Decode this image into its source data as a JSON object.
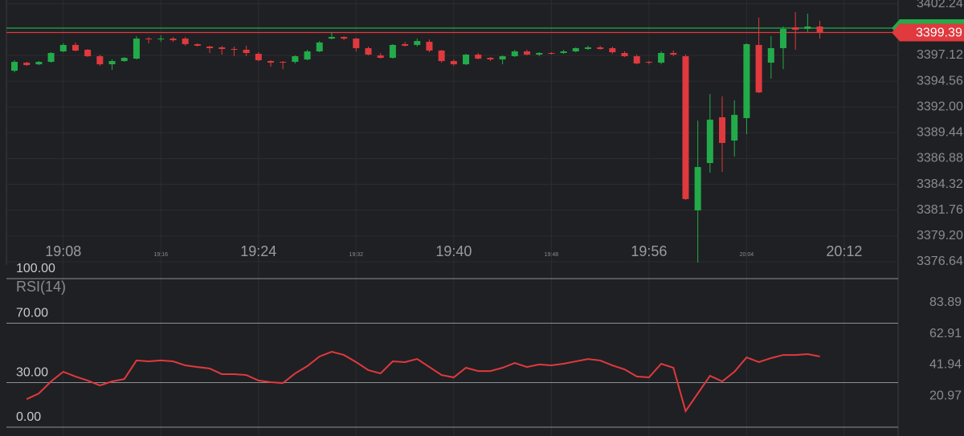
{
  "chart_data": {
    "type": "candlestick",
    "categories": [
      "19:04",
      "19:05",
      "19:06",
      "19:07",
      "19:08",
      "19:09",
      "19:10",
      "19:11",
      "19:12",
      "19:13",
      "19:14",
      "19:15",
      "19:16",
      "19:17",
      "19:18",
      "19:19",
      "19:20",
      "19:21",
      "19:22",
      "19:23",
      "19:24",
      "19:25",
      "19:26",
      "19:27",
      "19:28",
      "19:29",
      "19:30",
      "19:31",
      "19:32",
      "19:33",
      "19:34",
      "19:35",
      "19:36",
      "19:37",
      "19:38",
      "19:39",
      "19:40",
      "19:41",
      "19:42",
      "19:43",
      "19:44",
      "19:45",
      "19:46",
      "19:47",
      "19:48",
      "19:49",
      "19:50",
      "19:51",
      "19:52",
      "19:53",
      "19:54",
      "19:55",
      "19:56",
      "19:57",
      "19:58",
      "19:59",
      "20:00",
      "20:01",
      "20:02",
      "20:03",
      "20:04",
      "20:05",
      "20:06",
      "20:07",
      "20:08",
      "20:09",
      "20:10"
    ],
    "open": [
      3395.6,
      3396.4,
      3396.24,
      3396.48,
      3397.52,
      3398.16,
      3397.68,
      3397.04,
      3396.24,
      3396.56,
      3396.8,
      3398.79,
      3398.71,
      3398.79,
      3398.79,
      3398.24,
      3398.0,
      3397.92,
      3397.76,
      3397.68,
      3397.28,
      3396.56,
      3396.48,
      3396.48,
      3396.72,
      3397.52,
      3398.79,
      3398.95,
      3398.79,
      3397.84,
      3397.12,
      3396.88,
      3398.24,
      3398.16,
      3398.47,
      3397.6,
      3396.56,
      3396.24,
      3397.2,
      3396.88,
      3396.72,
      3397.04,
      3397.52,
      3397.2,
      3397.36,
      3397.36,
      3397.52,
      3397.76,
      3397.92,
      3397.84,
      3397.36,
      3397.04,
      3396.48,
      3396.4,
      3397.36,
      3397.04,
      3381.74,
      3386.44,
      3390.98,
      3388.67,
      3390.9,
      3398.16,
      3396.4,
      3397.84,
      3399.91,
      3399.75,
      3399.99
    ],
    "high": [
      3396.64,
      3396.48,
      3396.56,
      3397.44,
      3398.32,
      3398.4,
      3397.76,
      3397.2,
      3396.72,
      3396.96,
      3399.03,
      3398.95,
      3399.11,
      3398.95,
      3398.95,
      3398.32,
      3398.08,
      3398.08,
      3398.0,
      3398.08,
      3397.44,
      3396.64,
      3396.56,
      3397.12,
      3397.68,
      3398.55,
      3399.43,
      3399.03,
      3398.87,
      3398.0,
      3397.36,
      3398.24,
      3398.47,
      3398.79,
      3398.71,
      3397.68,
      3396.72,
      3397.28,
      3397.36,
      3396.96,
      3397.12,
      3397.68,
      3397.68,
      3397.44,
      3397.44,
      3397.68,
      3397.92,
      3398.08,
      3398.08,
      3398.0,
      3397.52,
      3397.2,
      3396.56,
      3397.52,
      3397.6,
      3397.2,
      3390.66,
      3393.29,
      3393.06,
      3392.66,
      3398.32,
      3400.87,
      3399.03,
      3399.99,
      3401.42,
      3401.26,
      3400.55
    ],
    "low": [
      3395.45,
      3396.08,
      3396.16,
      3396.4,
      3397.44,
      3397.52,
      3396.96,
      3396.08,
      3395.68,
      3396.48,
      3396.72,
      3398.32,
      3398.47,
      3398.47,
      3398.08,
      3398.0,
      3397.36,
      3397.2,
      3397.04,
      3397.04,
      3396.56,
      3396.0,
      3395.76,
      3396.32,
      3396.64,
      3397.44,
      3398.71,
      3398.63,
      3397.52,
      3397.12,
      3396.8,
      3396.8,
      3398.0,
      3398.0,
      3397.44,
      3396.4,
      3396.08,
      3396.16,
      3396.72,
      3396.56,
      3396.24,
      3396.96,
      3397.12,
      3397.04,
      3397.2,
      3397.28,
      3397.44,
      3397.68,
      3397.68,
      3397.28,
      3396.96,
      3396.24,
      3396.24,
      3396.24,
      3397.04,
      3382.78,
      3376.56,
      3385.48,
      3385.56,
      3387.08,
      3389.31,
      3393.37,
      3394.81,
      3395.76,
      3397.68,
      3399.43,
      3398.79
    ],
    "close": [
      3396.48,
      3396.16,
      3396.48,
      3397.36,
      3398.16,
      3397.6,
      3397.04,
      3396.24,
      3396.56,
      3396.88,
      3398.79,
      3398.71,
      3398.79,
      3398.63,
      3398.24,
      3398.08,
      3397.84,
      3397.76,
      3397.68,
      3397.36,
      3396.64,
      3396.4,
      3396.4,
      3397.04,
      3397.52,
      3398.4,
      3398.95,
      3398.79,
      3397.84,
      3397.2,
      3396.88,
      3398.16,
      3398.08,
      3398.55,
      3397.6,
      3396.56,
      3396.24,
      3397.2,
      3396.8,
      3396.72,
      3397.04,
      3397.52,
      3397.2,
      3397.36,
      3397.28,
      3397.52,
      3397.84,
      3397.92,
      3397.76,
      3397.44,
      3397.04,
      3396.32,
      3396.4,
      3397.36,
      3397.2,
      3382.86,
      3386.04,
      3390.74,
      3388.43,
      3391.22,
      3398.24,
      3393.45,
      3397.84,
      3399.75,
      3399.67,
      3399.99,
      3399.39
    ],
    "up_color": "#22ab4a",
    "down_color": "#e0393e",
    "ylim": [
      3376.32,
      3402.62
    ],
    "yticks": [
      3402.24,
      3397.12,
      3394.56,
      {
        "value": 3392,
        "label": "3392.00"
      },
      3389.44,
      3386.88,
      3384.32,
      3381.76,
      {
        "value": 3379.2,
        "label": "3379.20"
      },
      3376.64
    ],
    "xticks": [
      "19:08",
      "19:24",
      "19:40",
      "19:56",
      "20:12"
    ],
    "xticks_minor": [
      "19:16",
      "19:32",
      "19:48",
      "20:04"
    ],
    "grid": true,
    "price_lines": [
      {
        "value": 3399.83,
        "color": "#22ab4a"
      },
      {
        "value": 3399.39,
        "color": "#e0393e"
      }
    ],
    "last_price": 3399.39,
    "rsi": {
      "title": "RSI(14)",
      "color": "#e0393e",
      "ylim": [
        0,
        100
      ],
      "levels": [
        {
          "value": 100,
          "label": "100.00"
        },
        {
          "value": 70,
          "label": "70.00"
        },
        {
          "value": 30,
          "label": "30.00"
        },
        {
          "value": 0,
          "label": "0.00"
        }
      ],
      "yticks": [
        83.89,
        62.91,
        41.94,
        20.97
      ],
      "values": [
        null,
        18.9,
        22.7,
        30.8,
        37.3,
        34.1,
        31.4,
        28.1,
        30.8,
        32.4,
        44.9,
        44.3,
        44.9,
        44.3,
        41.6,
        40.5,
        39.5,
        35.7,
        35.7,
        35.1,
        31.4,
        30.3,
        29.7,
        36.2,
        41.1,
        47.6,
        50.8,
        48.6,
        43.8,
        38.4,
        36.2,
        44.3,
        43.8,
        45.9,
        40.5,
        35.1,
        33.5,
        40.0,
        37.8,
        37.8,
        40.0,
        43.2,
        40.5,
        42.2,
        41.6,
        42.7,
        44.3,
        45.9,
        44.9,
        41.6,
        38.9,
        34.1,
        33.5,
        42.7,
        40.0,
        10.8,
        22.7,
        34.6,
        30.8,
        37.3,
        47.0,
        43.8,
        46.5,
        48.6,
        48.6,
        49.2,
        47.6
      ]
    }
  }
}
